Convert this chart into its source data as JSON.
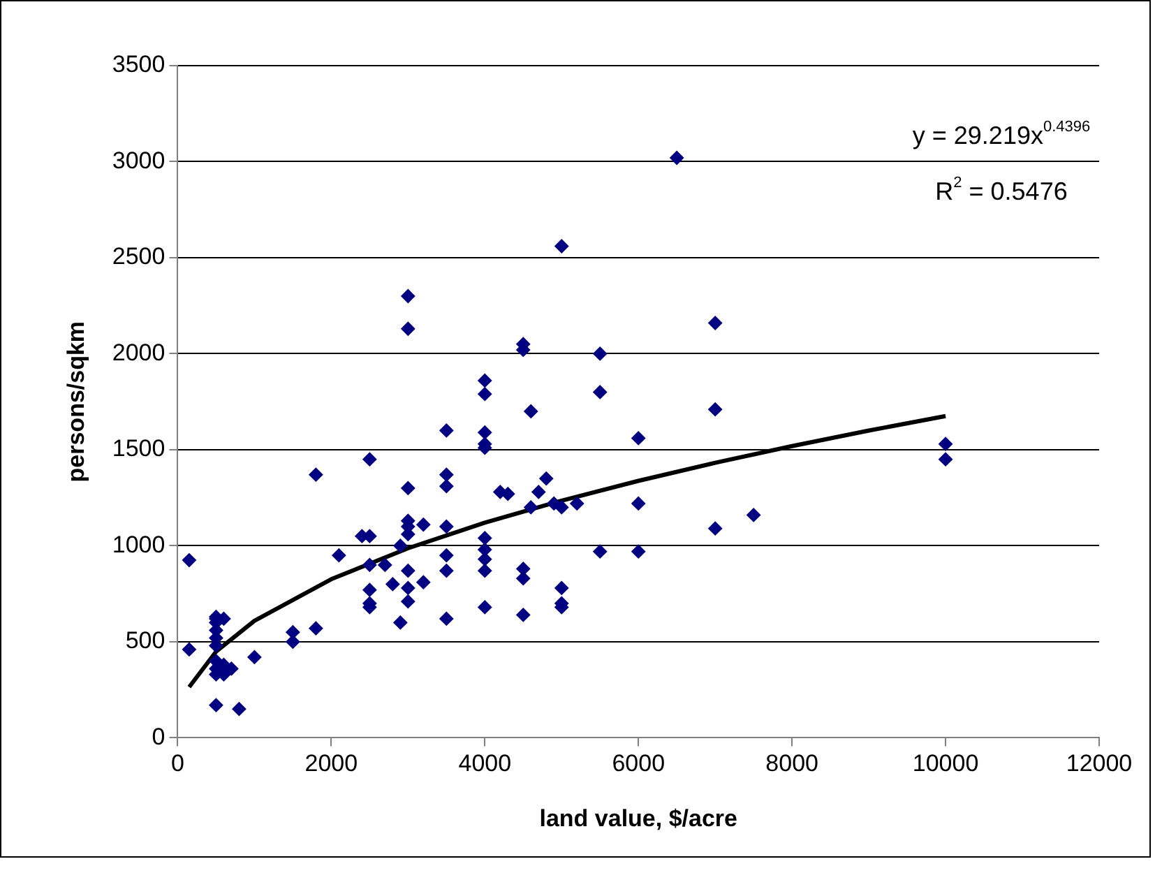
{
  "chart_data": {
    "type": "scatter",
    "xlabel": "land value, $/acre",
    "ylabel": "persons/sqkm",
    "xlim": [
      0,
      12000
    ],
    "xticks": [
      0,
      2000,
      4000,
      6000,
      8000,
      10000,
      12000
    ],
    "ylim": [
      0,
      3500
    ],
    "yticks": [
      0,
      500,
      1000,
      1500,
      2000,
      2500,
      3000,
      3500
    ],
    "grid": "y",
    "legend": false,
    "marker": "diamond",
    "annotations": [
      "y = 29.219x$^{0.4396}$",
      "R$^{2}$ = 0.5476"
    ],
    "series": [
      {
        "color": "#000080",
        "x": [
          150,
          150,
          500,
          500,
          500,
          500,
          500,
          500,
          500,
          500,
          500,
          500,
          600,
          600,
          600,
          700,
          800,
          1000,
          1500,
          1500,
          1800,
          1800,
          2100,
          2400,
          2500,
          2500,
          2500,
          2500,
          2500,
          2500,
          2700,
          2800,
          2900,
          2900,
          3000,
          3000,
          3000,
          3000,
          3000,
          3000,
          3000,
          3000,
          3000,
          3200,
          3200,
          3500,
          3500,
          3500,
          3500,
          3500,
          3500,
          3500,
          4000,
          4000,
          4000,
          4000,
          4000,
          4000,
          4000,
          4000,
          4000,
          4000,
          4200,
          4300,
          4500,
          4500,
          4500,
          4500,
          4500,
          4600,
          4600,
          4700,
          4800,
          4900,
          5000,
          5000,
          5000,
          5000,
          5000,
          5200,
          5500,
          5500,
          5500,
          6000,
          6000,
          6000,
          6500,
          7000,
          7000,
          7000,
          7500,
          10000,
          10000
        ],
        "values": [
          925,
          460,
          170,
          330,
          360,
          400,
          480,
          520,
          560,
          600,
          620,
          630,
          620,
          330,
          380,
          360,
          150,
          420,
          500,
          550,
          1370,
          570,
          950,
          1050,
          1450,
          1050,
          900,
          770,
          700,
          680,
          900,
          800,
          600,
          1000,
          2300,
          2130,
          1300,
          1130,
          1100,
          1060,
          870,
          780,
          710,
          1110,
          810,
          1600,
          1370,
          1310,
          1100,
          950,
          870,
          620,
          1860,
          1790,
          1590,
          1530,
          1510,
          1040,
          980,
          930,
          870,
          680,
          1280,
          1270,
          2050,
          2020,
          880,
          830,
          640,
          1700,
          1200,
          1280,
          1350,
          1220,
          2560,
          1200,
          780,
          700,
          680,
          1220,
          2000,
          1800,
          970,
          1560,
          1220,
          970,
          3020,
          2160,
          1710,
          1090,
          1160,
          1530,
          1450
        ]
      },
      {
        "type": "line",
        "color": "#000000",
        "marker": "none",
        "x": [
          150,
          500,
          1000,
          2000,
          3000,
          4000,
          5000,
          6000,
          7000,
          8000,
          9000,
          10000
        ],
        "values": [
          264,
          449,
          609,
          826,
          987,
          1120,
          1235,
          1338,
          1432,
          1519,
          1600,
          1675
        ]
      }
    ]
  }
}
